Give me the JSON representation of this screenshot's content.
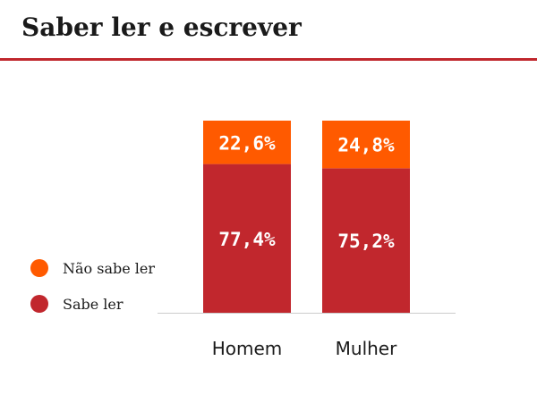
{
  "title": "Saber ler e escrever",
  "colors": {
    "accent": "#c0272d",
    "sabe_ler": "#c1272d",
    "nao_sabe_ler": "#ff5a00",
    "axis": "#cccccc",
    "text": "#1a1a1a",
    "label_text": "#ffffff"
  },
  "legend": {
    "items": [
      {
        "label": "Não sabe ler",
        "color": "#ff5a00"
      },
      {
        "label": "Sabe ler",
        "color": "#c1272d"
      }
    ]
  },
  "chart_data": {
    "type": "bar",
    "stacked": true,
    "categories": [
      "Homem",
      "Mulher"
    ],
    "series": [
      {
        "name": "Sabe ler",
        "values": [
          77.4,
          75.2
        ],
        "labels": [
          "77,4%",
          "75,2%"
        ],
        "color": "#c1272d"
      },
      {
        "name": "Não sabe ler",
        "values": [
          22.6,
          24.8
        ],
        "labels": [
          "22,6%",
          "24,8%"
        ],
        "color": "#ff5a00"
      }
    ],
    "ylim": [
      0,
      100
    ],
    "grid": false,
    "legend_position": "left"
  }
}
